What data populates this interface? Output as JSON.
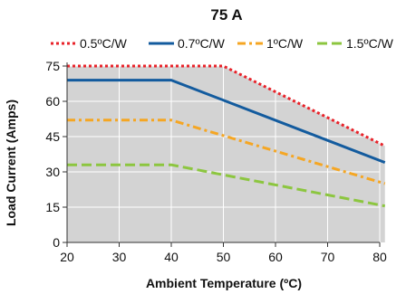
{
  "chart_data": {
    "type": "line",
    "title": "75 A",
    "xlabel": "Ambient Temperature (ºC)",
    "ylabel": "Load Current (Amps)",
    "xlim": [
      20,
      80
    ],
    "ylim": [
      0,
      75
    ],
    "xticks": [
      20,
      30,
      40,
      50,
      60,
      70,
      80
    ],
    "yticks": [
      0,
      15,
      30,
      45,
      60,
      75
    ],
    "x_tick_labels": [
      "20",
      "30",
      "40",
      "50",
      "60",
      "70",
      "80"
    ],
    "y_tick_labels": [
      "0",
      "15",
      "30",
      "45",
      "60",
      "75"
    ],
    "grid": true,
    "area_fill_color": "#d3d3d3",
    "legend_position": "top",
    "series": [
      {
        "name": "0.5ºC/W",
        "color": "#e8232a",
        "style": "dotted",
        "x": [
          20,
          40,
          50,
          81
        ],
        "y": [
          75,
          75,
          75,
          41
        ]
      },
      {
        "name": "0.7ºC/W",
        "color": "#135b9e",
        "style": "solid",
        "x": [
          20,
          40,
          81
        ],
        "y": [
          69,
          69,
          34
        ]
      },
      {
        "name": "1ºC/W",
        "color": "#f5a623",
        "style": "dashdot",
        "x": [
          20,
          40,
          81
        ],
        "y": [
          52,
          52,
          25
        ]
      },
      {
        "name": "1.5ºC/W",
        "color": "#8cc63f",
        "style": "dashed",
        "x": [
          20,
          40,
          81
        ],
        "y": [
          33,
          33,
          15.5
        ]
      }
    ]
  }
}
